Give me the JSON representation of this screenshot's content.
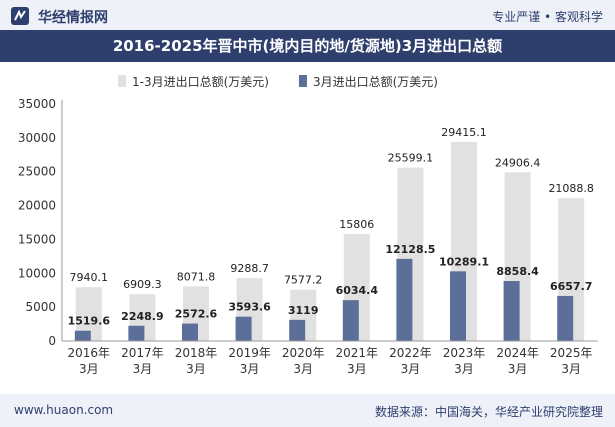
{
  "header": {
    "brand": "华经情报网",
    "slogan": "专业严谨 • 客观科学"
  },
  "footer": {
    "site": "www.huaon.com",
    "source": "数据来源：中国海关，华经产业研究院整理"
  },
  "colors": {
    "brand": "#2e3f6e",
    "series_total": "#e1e1e1",
    "series_march": "#5b6f99"
  },
  "chart_data": {
    "type": "bar",
    "title": "2016-2025年晋中市(境内目的地/货源地)3月进出口总额",
    "categories": [
      "2016年\n3月",
      "2017年\n3月",
      "2018年\n3月",
      "2019年\n3月",
      "2020年\n3月",
      "2021年\n3月",
      "2022年\n3月",
      "2023年\n3月",
      "2024年\n3月",
      "2025年\n3月"
    ],
    "series": [
      {
        "name": "1-3月进出口总额(万美元)",
        "color": "#e1e1e1",
        "values": [
          7940.1,
          6909.3,
          8071.8,
          9288.7,
          7577.2,
          15806,
          25599.1,
          29415.1,
          24906.4,
          21088.8
        ],
        "labels": [
          "7940.1",
          "6909.3",
          "8071.8",
          "9288.7",
          "7577.2",
          "15806",
          "25599.1",
          "29415.1",
          "24906.4",
          "21088.8"
        ]
      },
      {
        "name": "3月进出口总额(万美元)",
        "color": "#5b6f99",
        "values": [
          1519.6,
          2248.9,
          2572.6,
          3593.6,
          3119,
          6034.4,
          12128.5,
          10289.1,
          8858.4,
          6657.7
        ],
        "labels": [
          "1519.6",
          "2248.9",
          "2572.6",
          "3593.6",
          "3119",
          "6034.4",
          "12128.5",
          "10289.1",
          "8858.4",
          "6657.7"
        ]
      }
    ],
    "ylim": [
      0,
      35000
    ],
    "yticks": [
      "0",
      "5000",
      "10000",
      "15000",
      "20000",
      "25000",
      "30000",
      "35000"
    ],
    "grid": false,
    "legend": "top-center"
  }
}
